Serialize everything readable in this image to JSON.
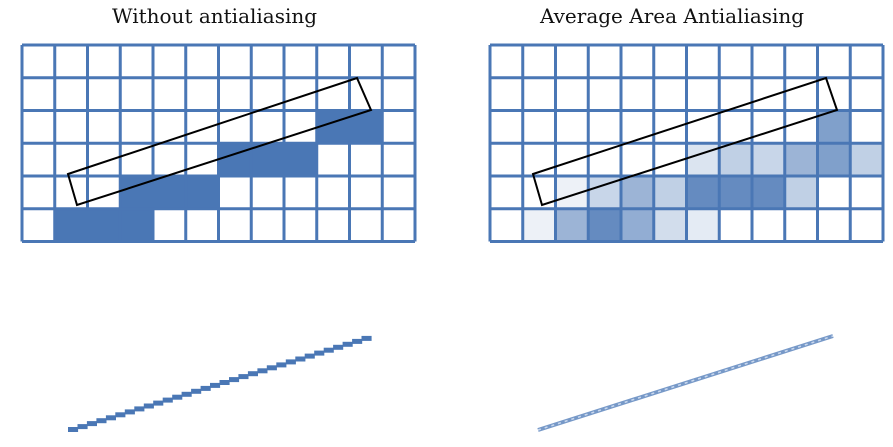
{
  "panels": [
    {
      "title": "Without antialiasing",
      "mode": "aliased",
      "grid": {
        "cols": 12,
        "rows": 6
      },
      "filled_cells": [
        {
          "col": 9,
          "row": 2,
          "coverage": 1
        },
        {
          "col": 10,
          "row": 2,
          "coverage": 1
        },
        {
          "col": 6,
          "row": 3,
          "coverage": 1
        },
        {
          "col": 7,
          "row": 3,
          "coverage": 1
        },
        {
          "col": 8,
          "row": 3,
          "coverage": 1
        },
        {
          "col": 3,
          "row": 4,
          "coverage": 1
        },
        {
          "col": 4,
          "row": 4,
          "coverage": 1
        },
        {
          "col": 5,
          "row": 4,
          "coverage": 1
        },
        {
          "col": 1,
          "row": 5,
          "coverage": 1
        },
        {
          "col": 2,
          "row": 5,
          "coverage": 1
        },
        {
          "col": 3,
          "row": 5,
          "coverage": 1
        }
      ]
    },
    {
      "title": "Average Area Antialiasing",
      "mode": "antialiased",
      "grid": {
        "cols": 11,
        "rows": 6
      },
      "filled_cells": [
        {
          "col": 10,
          "row": 2,
          "coverage": 0.7
        },
        {
          "col": 8,
          "row": 3,
          "coverage": 0.3
        },
        {
          "col": 9,
          "row": 3,
          "coverage": 0.55
        },
        {
          "col": 10,
          "row": 3,
          "coverage": 0.7
        },
        {
          "col": 11,
          "row": 3,
          "coverage": 0.35
        },
        {
          "col": 6,
          "row": 3,
          "coverage": 0.2
        },
        {
          "col": 7,
          "row": 3,
          "coverage": 0.35
        },
        {
          "col": 5,
          "row": 4,
          "coverage": 0.35
        },
        {
          "col": 6,
          "row": 4,
          "coverage": 0.85
        },
        {
          "col": 7,
          "row": 4,
          "coverage": 0.85
        },
        {
          "col": 8,
          "row": 4,
          "coverage": 0.85
        },
        {
          "col": 9,
          "row": 4,
          "coverage": 0.35
        },
        {
          "col": 2,
          "row": 4,
          "coverage": 0.1
        },
        {
          "col": 3,
          "row": 4,
          "coverage": 0.3
        },
        {
          "col": 4,
          "row": 4,
          "coverage": 0.55
        },
        {
          "col": 2,
          "row": 5,
          "coverage": 0.55
        },
        {
          "col": 3,
          "row": 5,
          "coverage": 0.85
        },
        {
          "col": 4,
          "row": 5,
          "coverage": 0.6
        },
        {
          "col": 5,
          "row": 5,
          "coverage": 0.25
        },
        {
          "col": 6,
          "row": 5,
          "coverage": 0.15
        },
        {
          "col": 1,
          "row": 5,
          "coverage": 0.1
        }
      ]
    }
  ],
  "colors": {
    "grid_line": "#4a77b5",
    "fill": "#4a77b5",
    "outline": "#000000",
    "background": "#ffffff"
  }
}
